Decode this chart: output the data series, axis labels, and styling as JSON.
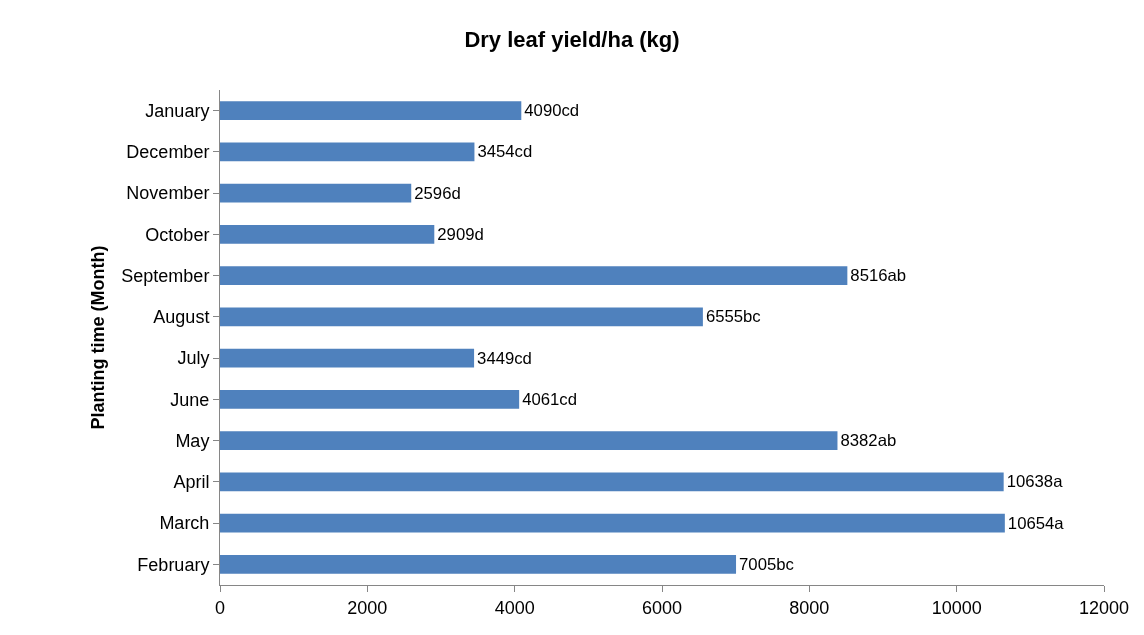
{
  "chart_data": {
    "type": "bar",
    "orientation": "horizontal",
    "title": "Dry leaf yield/ha (kg)",
    "ylabel": "Planting time (Month)",
    "categories": [
      "January",
      "December",
      "November",
      "October",
      "September",
      "August",
      "July",
      "June",
      "May",
      "April",
      "March",
      "February"
    ],
    "values": [
      4090,
      3454,
      2596,
      2909,
      8516,
      6555,
      3449,
      4061,
      8382,
      10638,
      10654,
      7005
    ],
    "value_labels": [
      "4090cd",
      "3454cd",
      "2596d",
      "2909d",
      "8516ab",
      "6555bc",
      "3449cd",
      "4061cd",
      "8382ab",
      "10638a",
      "10654a",
      "7005bc"
    ],
    "color": "#4f81bd",
    "xlim": [
      0,
      12000
    ],
    "xticks": [
      0,
      2000,
      4000,
      6000,
      8000,
      10000,
      12000
    ]
  }
}
